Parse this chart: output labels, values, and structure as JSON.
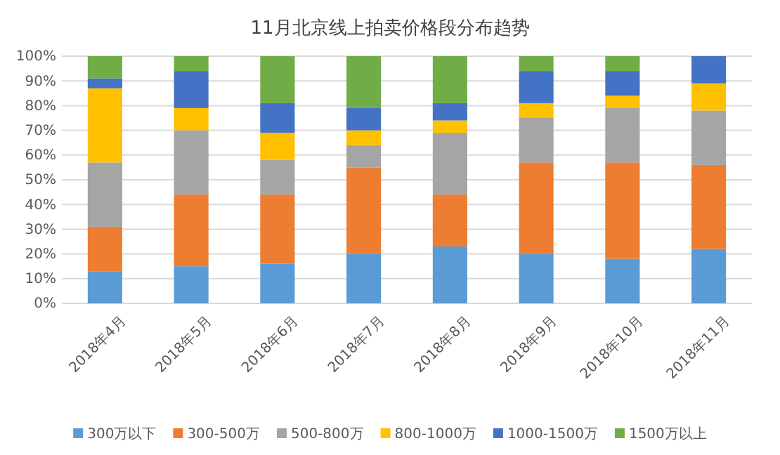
{
  "chart_data": {
    "type": "bar",
    "stacked": true,
    "title": "11月北京线上拍卖价格段分布趋势",
    "categories": [
      "2018年4月",
      "2018年5月",
      "2018年6月",
      "2018年7月",
      "2018年8月",
      "2018年9月",
      "2018年10月",
      "2018年11月"
    ],
    "series": [
      {
        "name": "300万以下",
        "color": "#5b9bd5",
        "values": [
          13,
          15,
          16,
          20,
          23,
          20,
          18,
          22
        ]
      },
      {
        "name": "300-500万",
        "color": "#ed7d31",
        "values": [
          18,
          29,
          28,
          35,
          21,
          37,
          39,
          34
        ]
      },
      {
        "name": "500-800万",
        "color": "#a5a5a5",
        "values": [
          26,
          26,
          14,
          9,
          25,
          18,
          22,
          22
        ]
      },
      {
        "name": "800-1000万",
        "color": "#ffc000",
        "values": [
          30,
          9,
          11,
          6,
          5,
          6,
          5,
          11
        ]
      },
      {
        "name": "1000-1500万",
        "color": "#4472c4",
        "values": [
          4,
          15,
          12,
          9,
          7,
          13,
          10,
          11
        ]
      },
      {
        "name": "1500万以上",
        "color": "#70ad47",
        "values": [
          9,
          6,
          19,
          21,
          19,
          6,
          6,
          0
        ]
      }
    ],
    "ylim": [
      0,
      100
    ],
    "yticks": [
      {
        "value": 0,
        "label": "0%"
      },
      {
        "value": 10,
        "label": "10%"
      },
      {
        "value": 20,
        "label": "20%"
      },
      {
        "value": 30,
        "label": "30%"
      },
      {
        "value": 40,
        "label": "40%"
      },
      {
        "value": 50,
        "label": "50%"
      },
      {
        "value": 60,
        "label": "60%"
      },
      {
        "value": 70,
        "label": "70%"
      },
      {
        "value": 80,
        "label": "80%"
      },
      {
        "value": 90,
        "label": "90%"
      },
      {
        "value": 100,
        "label": "100%"
      }
    ],
    "grid": "y",
    "legend": "bottom"
  }
}
